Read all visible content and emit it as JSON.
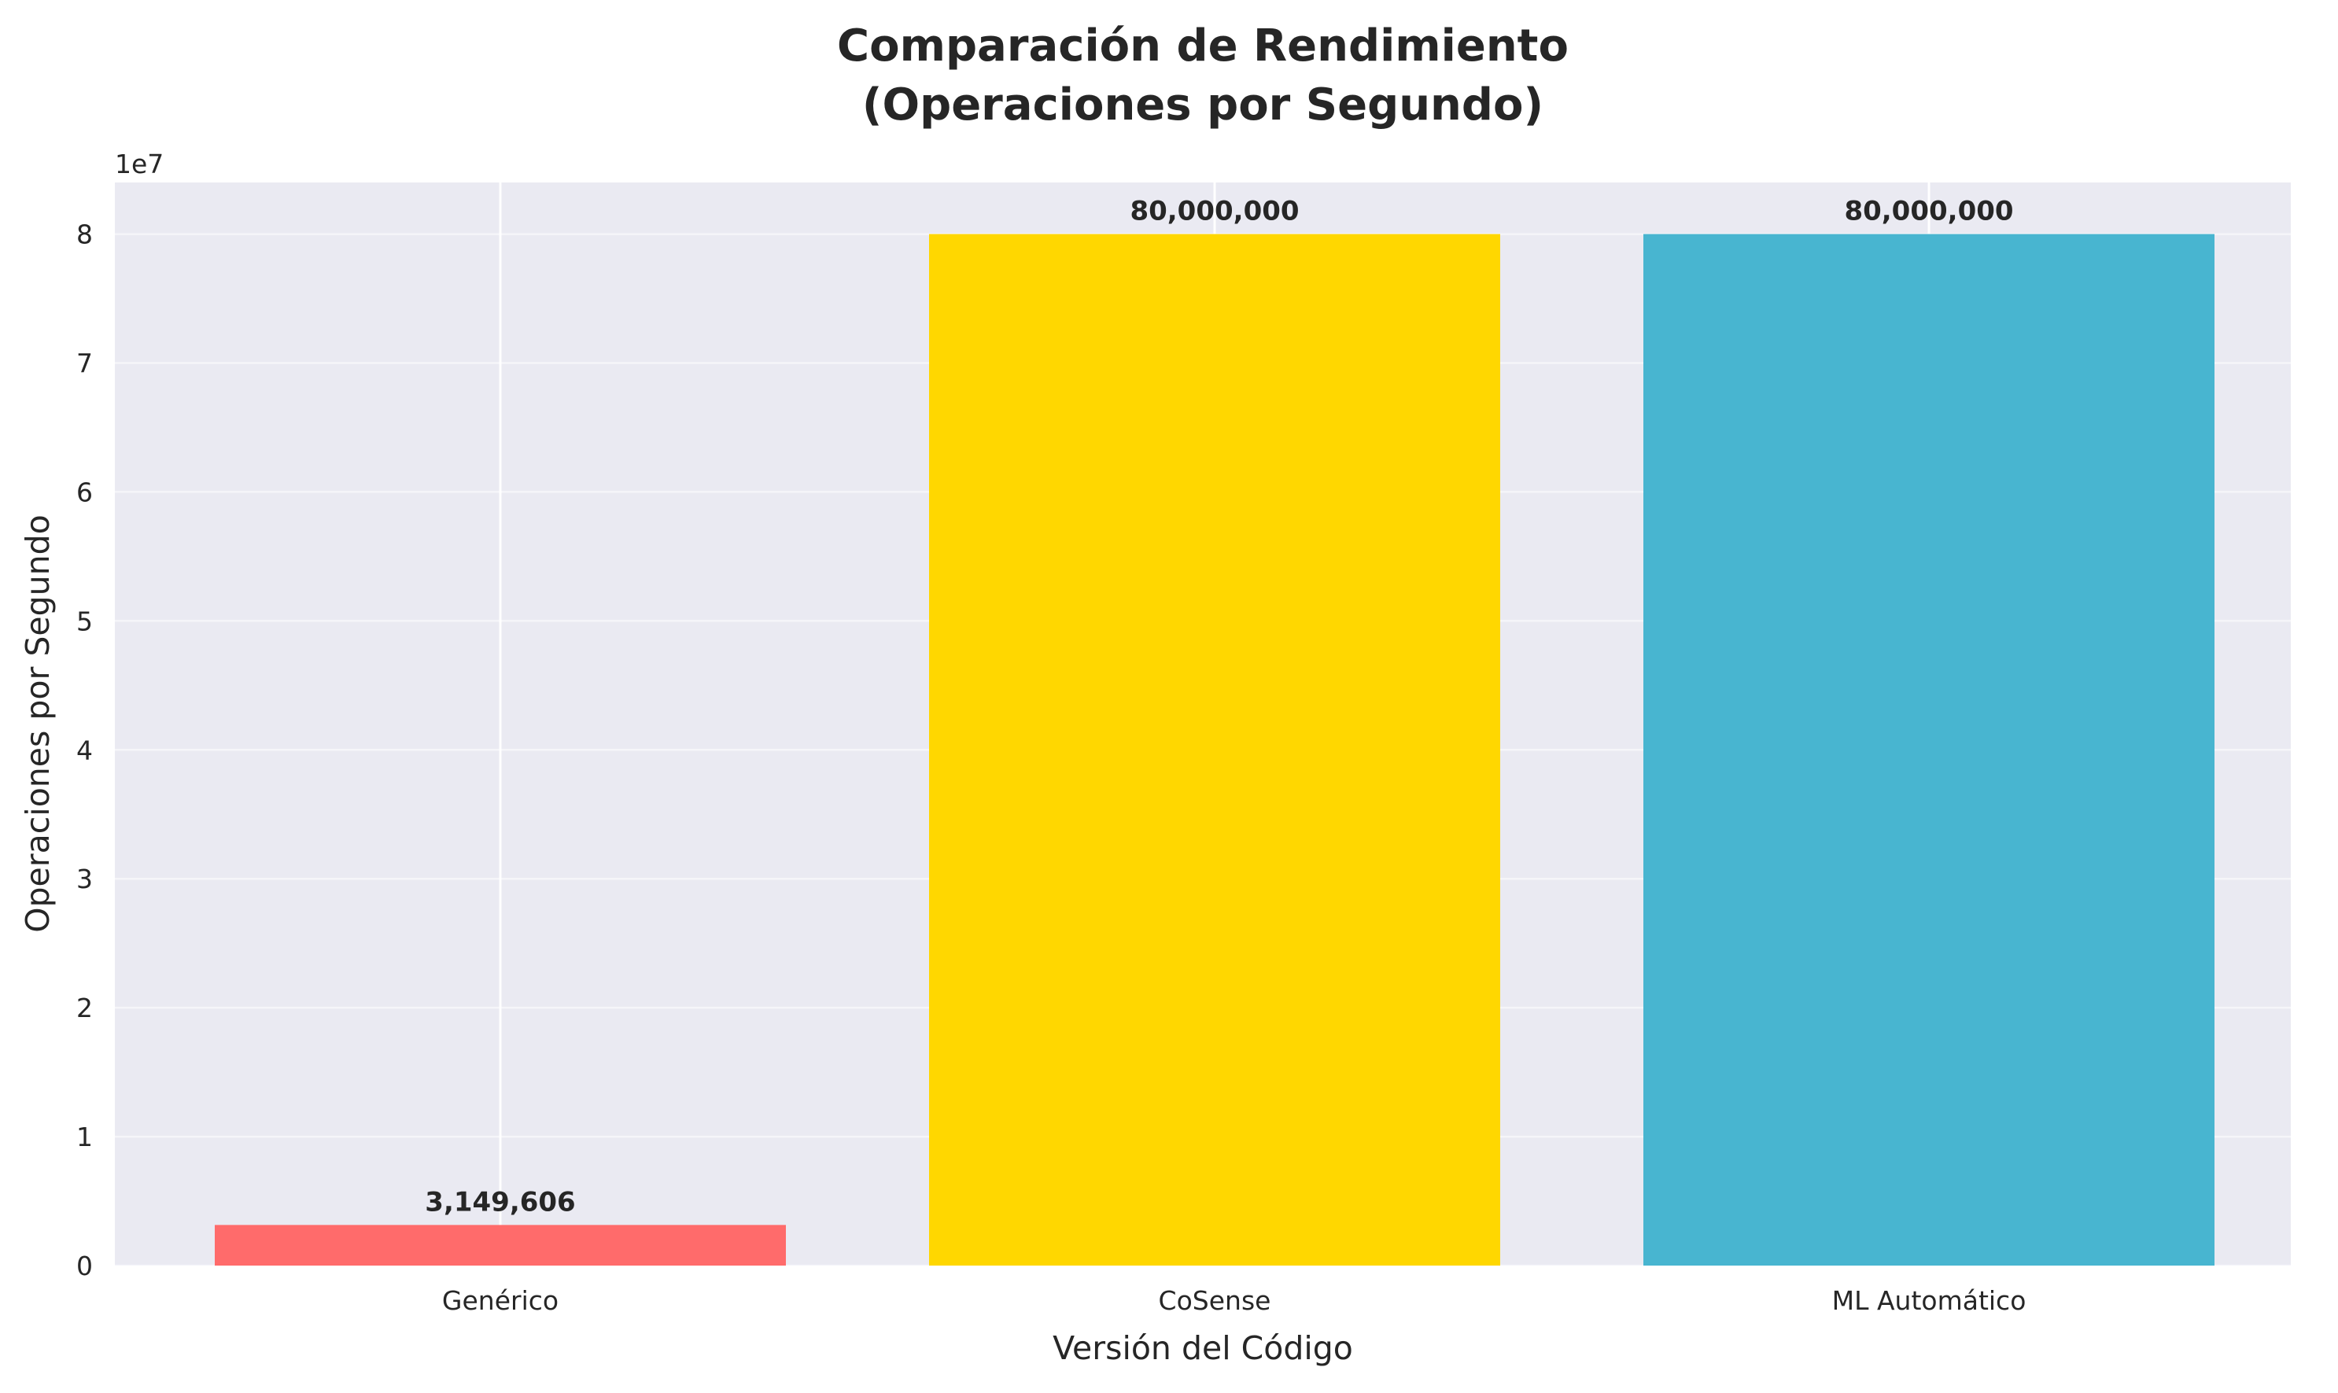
{
  "chart_data": {
    "type": "bar",
    "title_lines": [
      "Comparación de Rendimiento",
      "(Operaciones por Segundo)"
    ],
    "xlabel": "Versión del Código",
    "ylabel": "Operaciones por Segundo",
    "offset_text": "1e7",
    "categories": [
      "Genérico",
      "CoSense",
      "ML Automático"
    ],
    "values": [
      3149606,
      80000000,
      80000000
    ],
    "value_labels": [
      "3,149,606",
      "80,000,000",
      "80,000,000"
    ],
    "colors": [
      "#FF6B6B",
      "#FFD700",
      "#48B5D0"
    ],
    "ylim": [
      0,
      84000000
    ],
    "yticks": [
      0,
      10000000,
      20000000,
      30000000,
      40000000,
      50000000,
      60000000,
      70000000,
      80000000
    ],
    "ytick_labels": [
      "0",
      "1",
      "2",
      "3",
      "4",
      "5",
      "6",
      "7",
      "8"
    ],
    "grid": true,
    "background": "#EAEAF2",
    "grid_color": "#FFFFFF"
  }
}
